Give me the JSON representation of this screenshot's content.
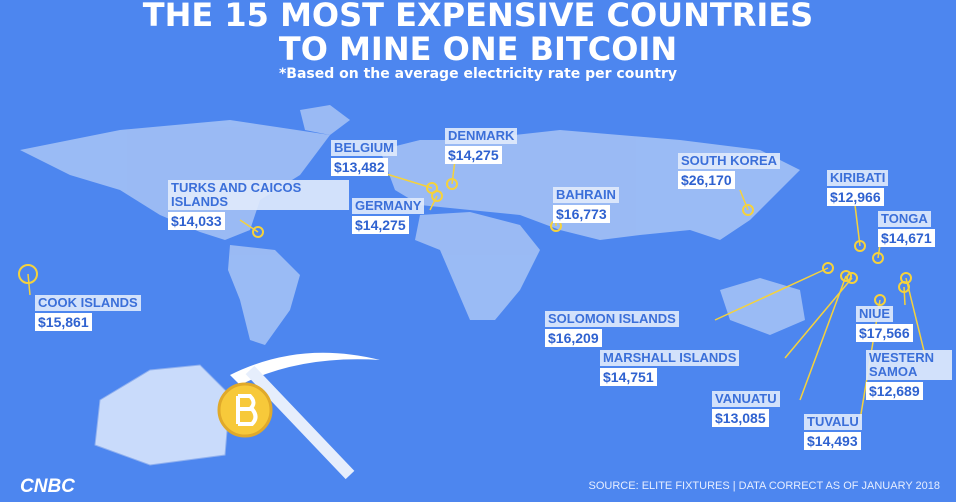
{
  "header": {
    "title": [
      "THE 15 MOST EXPENSIVE COUNTRIES",
      "TO MINE ONE BITCOIN"
    ],
    "subtitle": "*Based on the average electricity rate per country"
  },
  "countries": [
    {
      "name": "BELGIUM",
      "cost": "$13,482"
    },
    {
      "name": "DENMARK",
      "cost": "$14,275"
    },
    {
      "name": "TURKS AND CAICOS ISLANDS",
      "cost": "$14,033"
    },
    {
      "name": "GERMANY",
      "cost": "$14,275"
    },
    {
      "name": "BAHRAIN",
      "cost": "$16,773"
    },
    {
      "name": "SOUTH KOREA",
      "cost": "$26,170"
    },
    {
      "name": "KIRIBATI",
      "cost": "$12,966"
    },
    {
      "name": "TONGA",
      "cost": "$14,671"
    },
    {
      "name": "COOK ISLANDS",
      "cost": "$15,861"
    },
    {
      "name": "SOLOMON ISLANDS",
      "cost": "$16,209"
    },
    {
      "name": "MARSHALL ISLANDS",
      "cost": "$14,751"
    },
    {
      "name": "NIUE",
      "cost": "$17,566"
    },
    {
      "name": "WESTERN SAMOA",
      "cost": "$12,689"
    },
    {
      "name": "VANUATU",
      "cost": "$13,085"
    },
    {
      "name": "TUVALU",
      "cost": "$14,493"
    }
  ],
  "footer": {
    "logo": "CNBC",
    "source": "SOURCE: ELITE FIXTURES | DATA CORRECT AS OF JANUARY 2018"
  }
}
